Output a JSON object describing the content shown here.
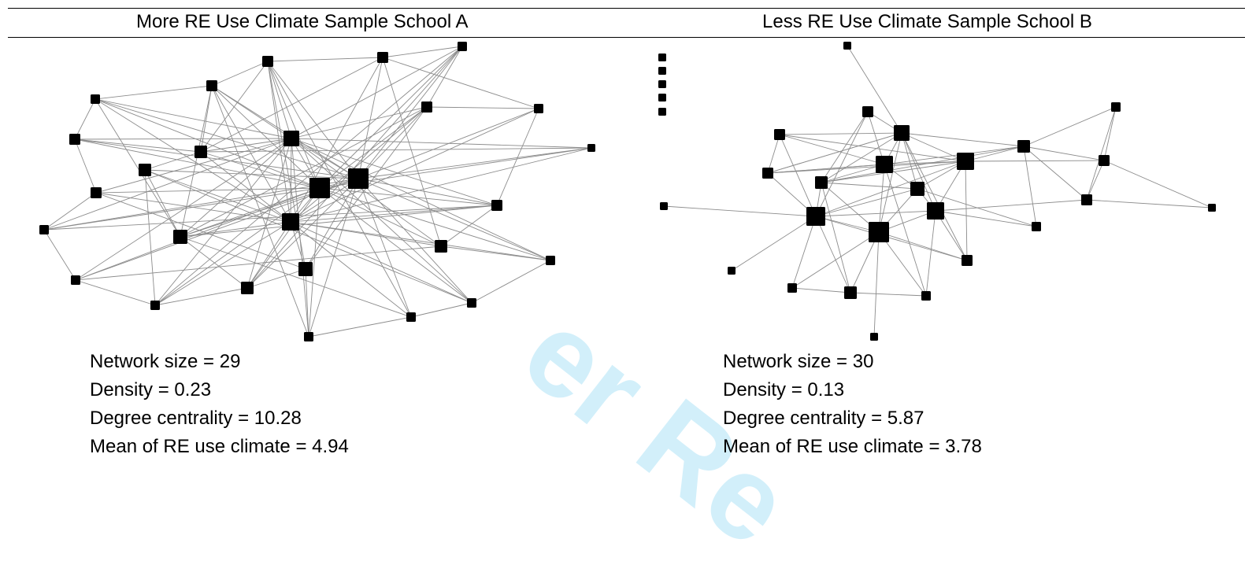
{
  "panels": [
    {
      "title": "More RE Use Climate Sample School A",
      "stats": [
        "Network size = 29",
        "Density = 0.23",
        "Degree centrality = 10.28",
        "Mean of RE use climate = 4.94"
      ]
    },
    {
      "title": "Less RE Use Climate Sample School B",
      "stats": [
        "Network size = 30",
        "Density = 0.13",
        "Degree centrality = 5.87",
        "Mean of RE use climate = 3.78"
      ]
    }
  ],
  "watermark_text": "er Re",
  "colors": {
    "node": "#000000",
    "edge": "#8c8c8c",
    "watermark": "#7fd3f2"
  }
}
